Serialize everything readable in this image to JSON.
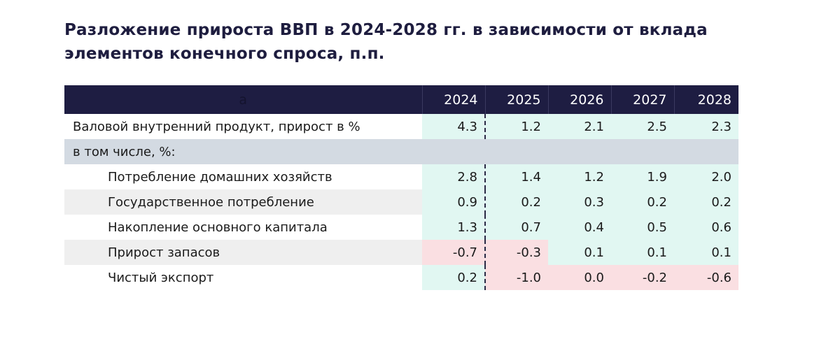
{
  "title": "Разложение прироста ВВП в 2024-2028 гг. в зависимости от вклада элементов конечного спроса, п.п.",
  "table": {
    "corner_label": "а",
    "years": [
      "2024",
      "2025",
      "2026",
      "2027",
      "2028"
    ],
    "gdp_row": {
      "label": "Валовой внутренний продукт, прирост в %",
      "values": [
        "4.3",
        "1.2",
        "2.1",
        "2.5",
        "2.3"
      ]
    },
    "section_label": "в том числе, %:",
    "components": [
      {
        "label": "Потребление домашних хозяйств",
        "values": [
          "2.8",
          "1.4",
          "1.2",
          "1.9",
          "2.0"
        ]
      },
      {
        "label": "Государственное потребление",
        "values": [
          "0.9",
          "0.2",
          "0.3",
          "0.2",
          "0.2"
        ]
      },
      {
        "label": "Накопление основного капитала",
        "values": [
          "1.3",
          "0.7",
          "0.4",
          "0.5",
          "0.6"
        ]
      },
      {
        "label": "Прирост запасов",
        "values": [
          "-0.7",
          "-0.3",
          "0.1",
          "0.1",
          "0.1"
        ]
      },
      {
        "label": "Чистый экспорт",
        "values": [
          "0.2",
          "-1.0",
          "0.0",
          "-0.2",
          "-0.6"
        ]
      }
    ]
  },
  "colors": {
    "header_bg": "#1e1d42",
    "title_text": "#1e1d3f",
    "positive_cell": "#e1f7f2",
    "negative_cell": "#fadfe2",
    "section_row": "#d3dae2",
    "alt_row": "#efefef"
  }
}
